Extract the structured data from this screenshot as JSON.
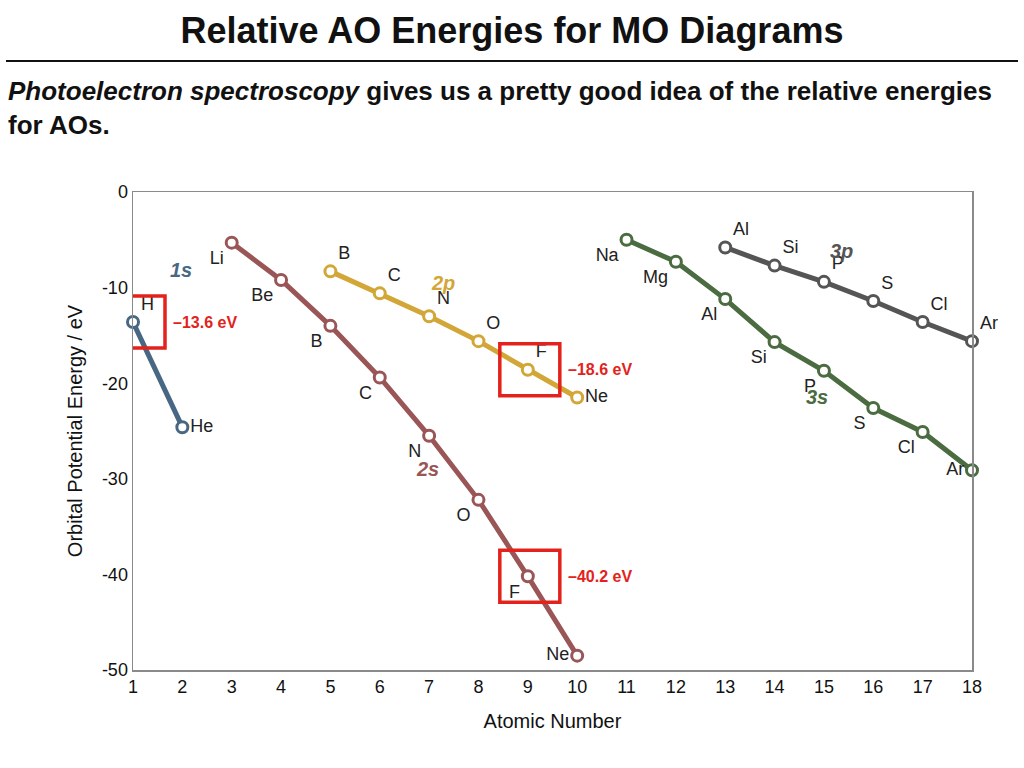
{
  "header": {
    "title": "Relative AO Energies for MO Diagrams",
    "subtitle": [
      "Photoelectron spectroscopy",
      "gives us a pretty good idea of the relative energies for AOs."
    ]
  },
  "chart_data": {
    "type": "line",
    "xlabel": "Atomic Number",
    "ylabel": "Orbital Potential Energy / eV",
    "xlim": [
      1,
      18
    ],
    "ylim": [
      -50,
      0
    ],
    "xticks": [
      1,
      2,
      3,
      4,
      5,
      6,
      7,
      8,
      9,
      10,
      11,
      12,
      13,
      14,
      15,
      16,
      17,
      18
    ],
    "yticks": [
      -50,
      -40,
      -30,
      -20,
      -10,
      0
    ],
    "grid": false,
    "marker": "circle",
    "series": [
      {
        "name": "1s",
        "color": "#486783",
        "x": [
          1,
          2
        ],
        "values": [
          -13.6,
          -24.6
        ],
        "labels": [
          "H",
          "He"
        ]
      },
      {
        "name": "2s",
        "color": "#9a5656",
        "x": [
          3,
          4,
          5,
          6,
          7,
          8,
          9,
          10
        ],
        "values": [
          -5.3,
          -9.2,
          -14.0,
          -19.4,
          -25.5,
          -32.2,
          -40.2,
          -48.5
        ],
        "labels": [
          "Li",
          "Be",
          "B",
          "C",
          "N",
          "O",
          "F",
          "Ne"
        ]
      },
      {
        "name": "2p",
        "color": "#d2a637",
        "x": [
          5,
          6,
          7,
          8,
          9,
          10
        ],
        "values": [
          -8.3,
          -10.6,
          -13.0,
          -15.6,
          -18.6,
          -21.5
        ],
        "labels": [
          "B",
          "C",
          "N",
          "O",
          "F",
          "Ne"
        ]
      },
      {
        "name": "3s",
        "color": "#4b6b40",
        "x": [
          11,
          12,
          13,
          14,
          15,
          16,
          17,
          18
        ],
        "values": [
          -5.0,
          -7.3,
          -11.2,
          -15.7,
          -18.7,
          -22.6,
          -25.1,
          -29.1
        ],
        "labels": [
          "Na",
          "Mg",
          "Al",
          "Si",
          "P",
          "S",
          "Cl",
          "Ar"
        ]
      },
      {
        "name": "3p",
        "color": "#555555",
        "x": [
          13,
          14,
          15,
          16,
          17,
          18
        ],
        "values": [
          -5.8,
          -7.7,
          -9.4,
          -11.4,
          -13.6,
          -15.6
        ],
        "labels": [
          "Al",
          "Si",
          "P",
          "S",
          "Cl",
          "Ar"
        ]
      }
    ],
    "annotations": [
      {
        "series": "1s",
        "x": 1,
        "y": -13.6,
        "text": "–13.6 eV"
      },
      {
        "series": "2p",
        "x": 9,
        "y": -18.6,
        "text": "–18.6 eV"
      },
      {
        "series": "2s",
        "x": 9,
        "y": -40.2,
        "text": "–40.2 eV"
      }
    ]
  }
}
